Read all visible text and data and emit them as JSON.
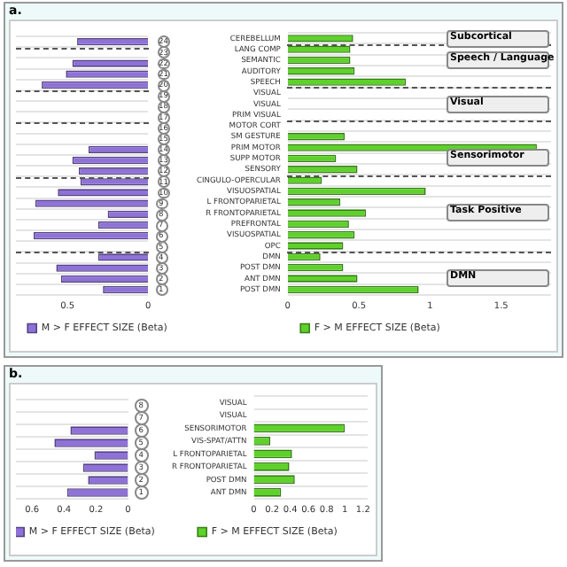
{
  "chart_data": [
    {
      "type": "bar",
      "title": "a.",
      "orientation": "horizontal",
      "grid": "y",
      "legend": "bottom",
      "categories": [
        "24",
        "23",
        "22",
        "21",
        "20",
        "19",
        "18",
        "17",
        "16",
        "15",
        "14",
        "13",
        "12",
        "11",
        "10",
        "9",
        "8",
        "7",
        "6",
        "5",
        "4",
        "3",
        "2",
        "1"
      ],
      "series": [
        {
          "name": "M > F EFFECT SIZE (Beta)",
          "color": "#8e72d8",
          "values": [
            0.44,
            null,
            0.47,
            0.51,
            0.66,
            null,
            null,
            null,
            null,
            null,
            0.37,
            0.47,
            0.43,
            0.42,
            0.56,
            0.7,
            0.25,
            0.31,
            0.71,
            null,
            0.31,
            0.57,
            0.54,
            0.28
          ]
        }
      ],
      "xlim": [
        0.82,
        0
      ],
      "xticks": [
        0.5,
        0
      ]
    },
    {
      "type": "bar",
      "orientation": "horizontal",
      "grid": "y",
      "legend": "bottom",
      "categories": [
        "CEREBELLUM",
        "LANG COMP",
        "SEMANTIC",
        "AUDITORY",
        "SPEECH",
        "VISUAL",
        "VISUAL",
        "PRIM VISUAL",
        "MOTOR CORT",
        "SM GESTURE",
        "PRIM MOTOR",
        "SUPP MOTOR",
        "SENSORY",
        "CINGULO-OPERCULAR",
        "VISUOSPATIAL",
        "L FRONTOPARIETAL",
        "R FRONTOPARIETAL",
        "PREFRONTAL",
        "VISUOSPATIAL",
        "OPC",
        "DMN",
        "POST DMN",
        "ANT DMN",
        "POST DMN"
      ],
      "series": [
        {
          "name": "F > M EFFECT SIZE (Beta)",
          "color": "#5ed12a",
          "values": [
            0.46,
            0.44,
            0.44,
            0.47,
            0.83,
            null,
            null,
            null,
            null,
            0.4,
            1.75,
            0.34,
            0.49,
            0.24,
            0.97,
            0.37,
            0.55,
            0.43,
            0.47,
            0.39,
            0.23,
            0.39,
            0.49,
            0.92
          ]
        }
      ],
      "xlim": [
        0,
        1.85
      ],
      "xticks": [
        0,
        0.5,
        1,
        1.5
      ],
      "annotations": [
        "Subcortical",
        "Speech / Language",
        "Visual",
        "Sensorimotor",
        "Task Positive",
        "DMN"
      ]
    },
    {
      "type": "bar",
      "title": "b.",
      "orientation": "horizontal",
      "grid": "y",
      "legend": "bottom",
      "categories": [
        "8",
        "7",
        "6",
        "5",
        "4",
        "3",
        "2",
        "1"
      ],
      "series": [
        {
          "name": "M > F EFFECT SIZE (Beta)",
          "color": "#8e72d8",
          "values": [
            null,
            null,
            0.36,
            0.46,
            0.21,
            0.28,
            0.25,
            0.38
          ]
        }
      ],
      "xlim": [
        0.7,
        0
      ],
      "xticks": [
        0.6,
        0.4,
        0.2,
        0
      ]
    },
    {
      "type": "bar",
      "orientation": "horizontal",
      "grid": "y",
      "legend": "bottom",
      "categories": [
        "VISUAL",
        "VISUAL",
        "SENSORIMOTOR",
        "VIS-SPAT/ATTN",
        "L FRONTOPARIETAL",
        "R FRONTOPARIETAL",
        "POST DMN",
        "ANT DMN"
      ],
      "series": [
        {
          "name": "F > M EFFECT SIZE (Beta)",
          "color": "#5ed12a",
          "values": [
            null,
            null,
            1.0,
            0.18,
            0.42,
            0.39,
            0.45,
            0.3
          ]
        }
      ],
      "xlim": [
        0,
        1.25
      ],
      "xticks": [
        0,
        0.2,
        0.4,
        0.6,
        0.8,
        1,
        1.2
      ]
    }
  ]
}
